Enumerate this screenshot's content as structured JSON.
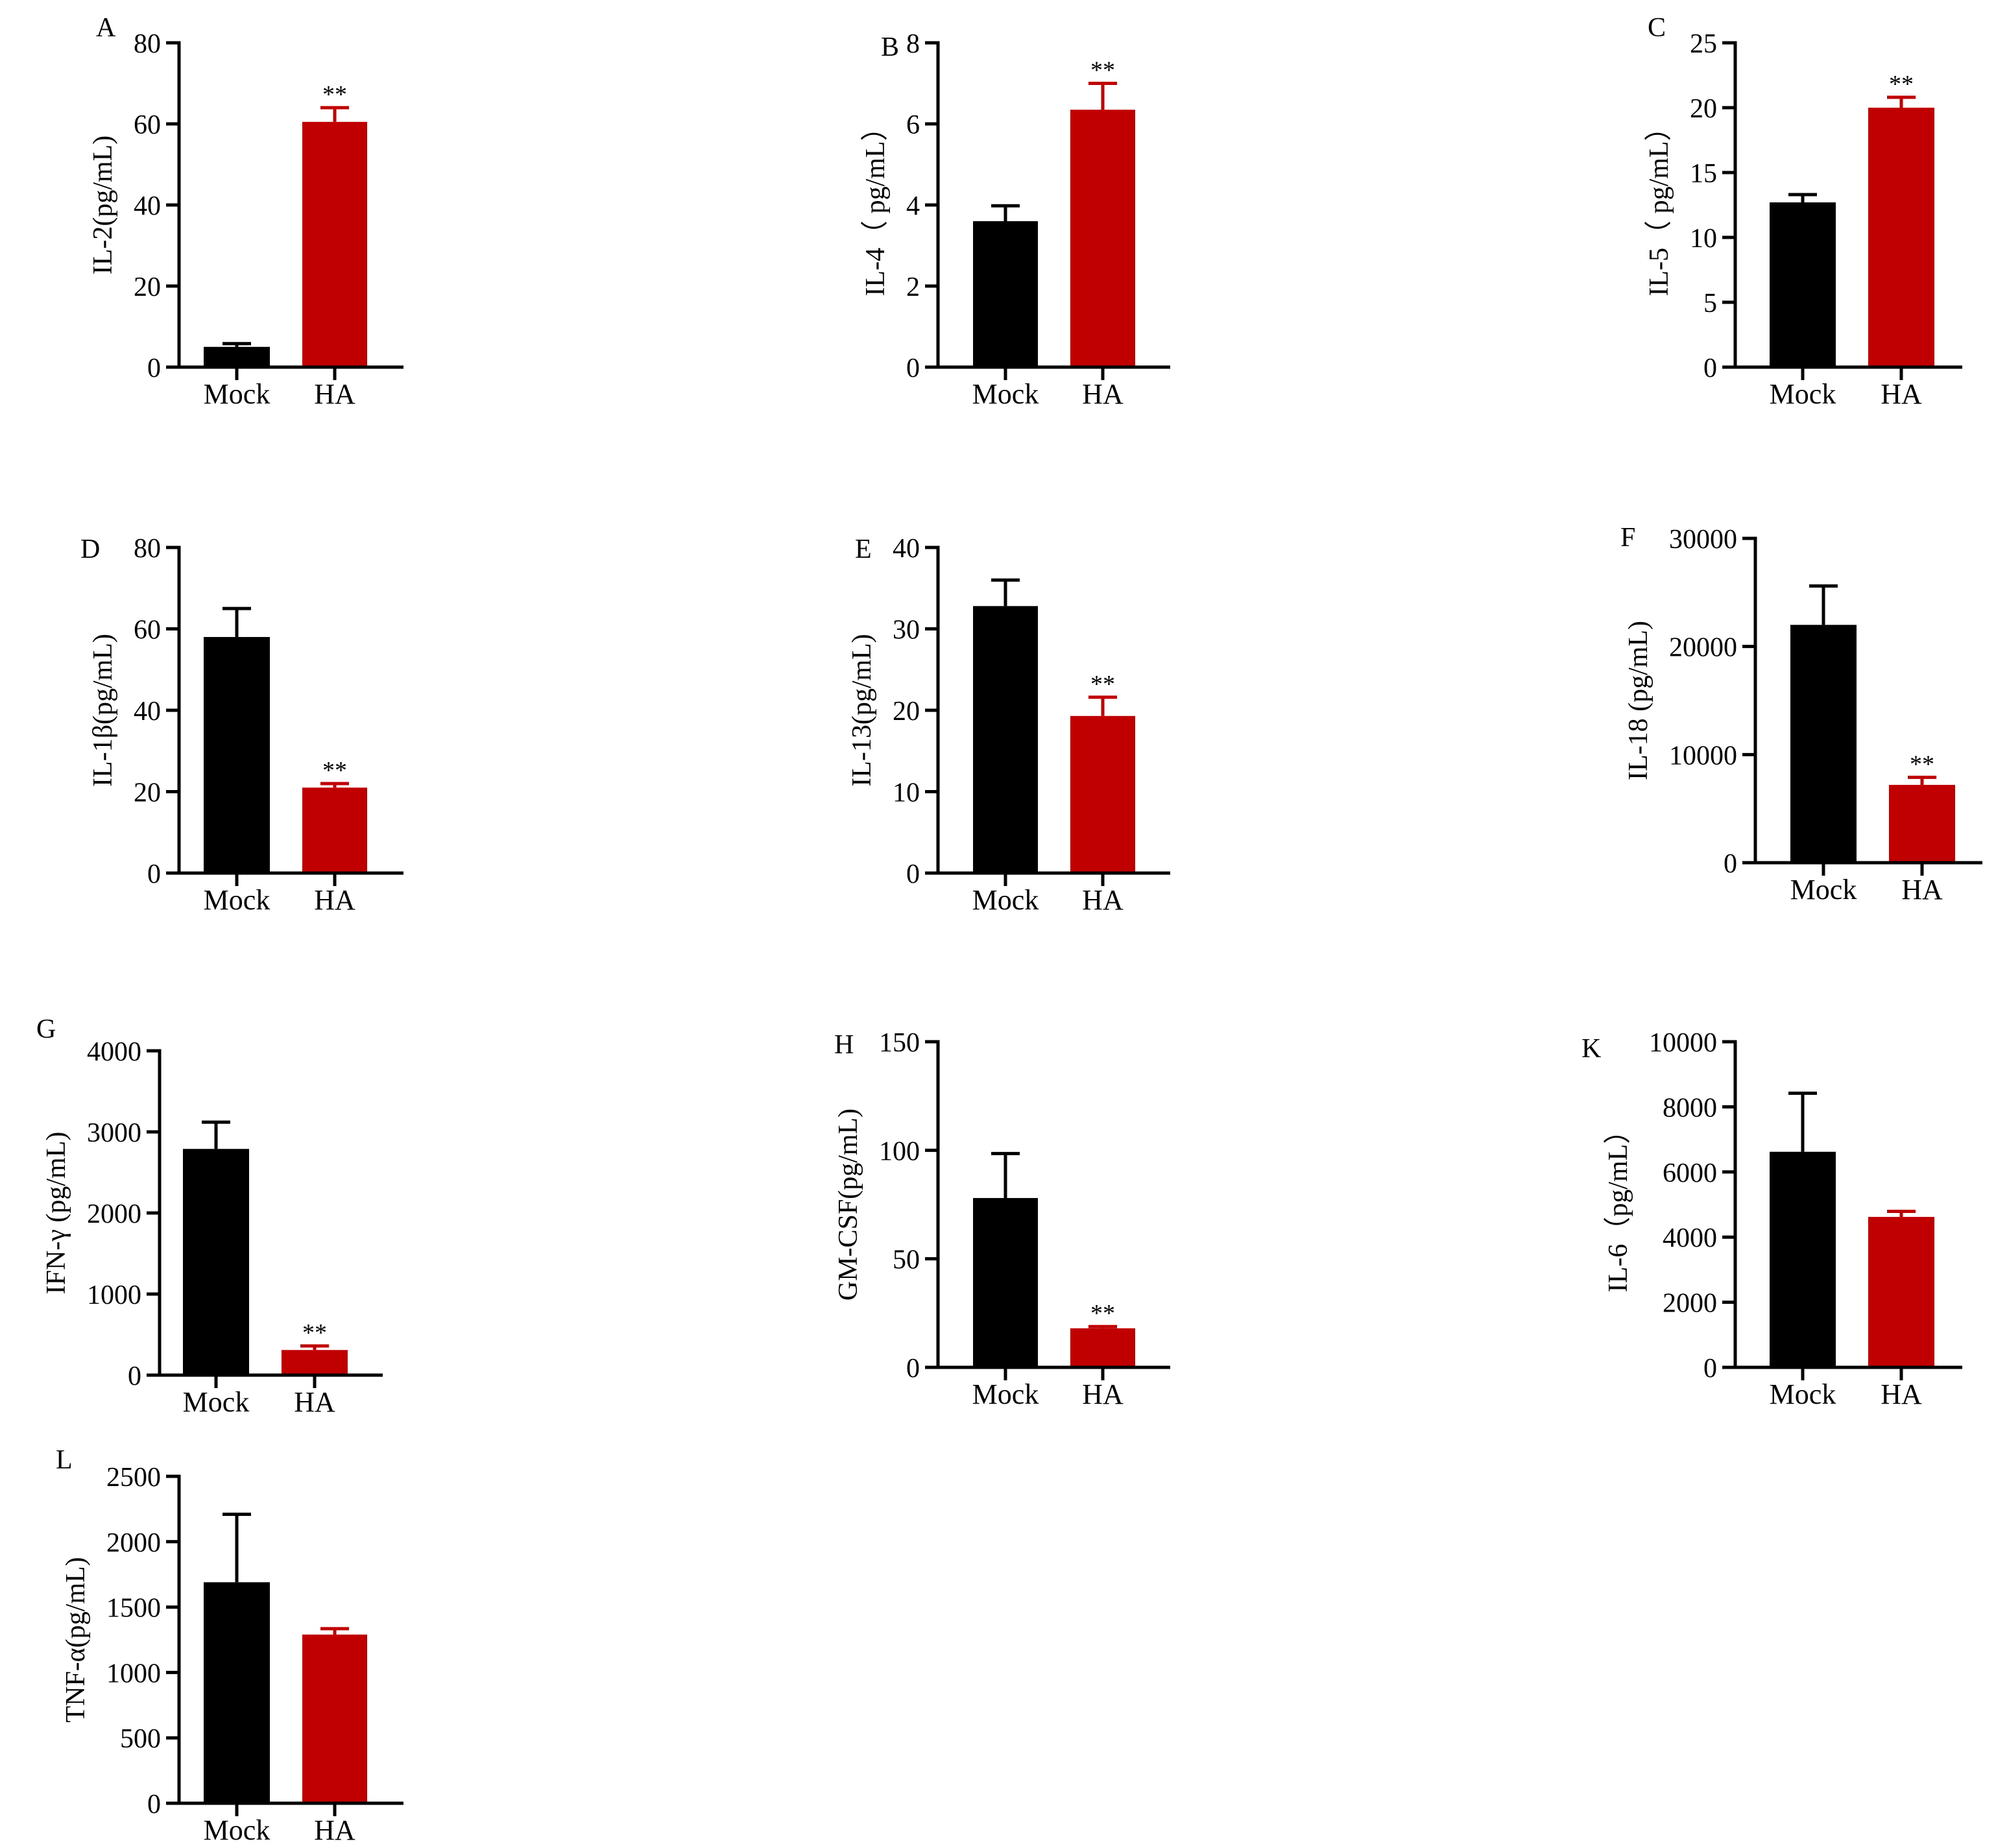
{
  "colors": {
    "mock": "#000000",
    "ha": "#c00000",
    "axis": "#000000"
  },
  "chart_data": [
    {
      "type": "bar",
      "panel": "A",
      "ylabel": "IL-2(pg/mL)",
      "categories": [
        "Mock",
        "HA"
      ],
      "values": [
        5,
        60.5
      ],
      "errors": [
        0.8,
        3.5
      ],
      "significance": [
        "",
        "**"
      ],
      "ylim": [
        0,
        80
      ],
      "yticks": [
        "0",
        "20",
        "40",
        "60",
        "80"
      ]
    },
    {
      "type": "bar",
      "panel": "B",
      "ylabel": "IL-4（ pg/mL）",
      "categories": [
        "Mock",
        "HA"
      ],
      "values": [
        3.6,
        6.35
      ],
      "errors": [
        0.38,
        0.65
      ],
      "significance": [
        "",
        "**"
      ],
      "ylim": [
        0,
        8
      ],
      "yticks": [
        "0",
        "2",
        "4",
        "6",
        "8"
      ]
    },
    {
      "type": "bar",
      "panel": "C",
      "ylabel": "IL-5（ pg/mL）",
      "categories": [
        "Mock",
        "HA"
      ],
      "values": [
        12.7,
        20
      ],
      "errors": [
        0.6,
        0.8
      ],
      "significance": [
        "",
        "**"
      ],
      "ylim": [
        0,
        25
      ],
      "yticks": [
        "0",
        "5",
        "10",
        "15",
        "20",
        "25"
      ]
    },
    {
      "type": "bar",
      "panel": "D",
      "ylabel": "IL-1β(pg/mL)",
      "categories": [
        "Mock",
        "HA"
      ],
      "values": [
        58,
        21
      ],
      "errors": [
        7,
        1
      ],
      "significance": [
        "",
        "**"
      ],
      "ylim": [
        0,
        80
      ],
      "yticks": [
        "0",
        "20",
        "40",
        "60",
        "80"
      ]
    },
    {
      "type": "bar",
      "panel": "E",
      "ylabel": "IL-13(pg/mL)",
      "categories": [
        "Mock",
        "HA"
      ],
      "values": [
        32.8,
        19.3
      ],
      "errors": [
        3.2,
        2.3
      ],
      "significance": [
        "",
        "**"
      ],
      "ylim": [
        0,
        40
      ],
      "yticks": [
        "0",
        "10",
        "20",
        "30",
        "40"
      ]
    },
    {
      "type": "bar",
      "panel": "F",
      "ylabel": "IL-18 (pg/mL)",
      "categories": [
        "Mock",
        "HA"
      ],
      "values": [
        22000,
        7200
      ],
      "errors": [
        3600,
        700
      ],
      "significance": [
        "",
        "**"
      ],
      "ylim": [
        0,
        30000
      ],
      "yticks": [
        "0",
        "10000",
        "20000",
        "30000"
      ]
    },
    {
      "type": "bar",
      "panel": "G",
      "ylabel": "IFN-γ (pg/mL)",
      "categories": [
        "Mock",
        "HA"
      ],
      "values": [
        2790,
        310
      ],
      "errors": [
        330,
        50
      ],
      "significance": [
        "",
        "**"
      ],
      "ylim": [
        0,
        4000
      ],
      "yticks": [
        "0",
        "1000",
        "2000",
        "3000",
        "4000"
      ]
    },
    {
      "type": "bar",
      "panel": "H",
      "ylabel": "GM-CSF(pg/mL)",
      "categories": [
        "Mock",
        "HA"
      ],
      "values": [
        78,
        18
      ],
      "errors": [
        20.5,
        0.8
      ],
      "significance": [
        "",
        "**"
      ],
      "ylim": [
        0,
        150
      ],
      "yticks": [
        "0",
        "50",
        "100",
        "150"
      ]
    },
    {
      "type": "bar",
      "panel": "K",
      "ylabel": "IL-6（pg/mL）",
      "categories": [
        "Mock",
        "HA"
      ],
      "values": [
        6620,
        4620
      ],
      "errors": [
        1800,
        170
      ],
      "significance": [
        "",
        ""
      ],
      "ylim": [
        0,
        10000
      ],
      "yticks": [
        "0",
        "2000",
        "4000",
        "6000",
        "8000",
        "10000"
      ]
    },
    {
      "type": "bar",
      "panel": "L",
      "ylabel": "TNF-α(pg/mL)",
      "categories": [
        "Mock",
        "HA"
      ],
      "values": [
        1690,
        1290
      ],
      "errors": [
        520,
        45
      ],
      "significance": [
        "",
        ""
      ],
      "ylim": [
        0,
        2500
      ],
      "yticks": [
        "0",
        "500",
        "1000",
        "1500",
        "2000",
        "2500"
      ]
    }
  ]
}
